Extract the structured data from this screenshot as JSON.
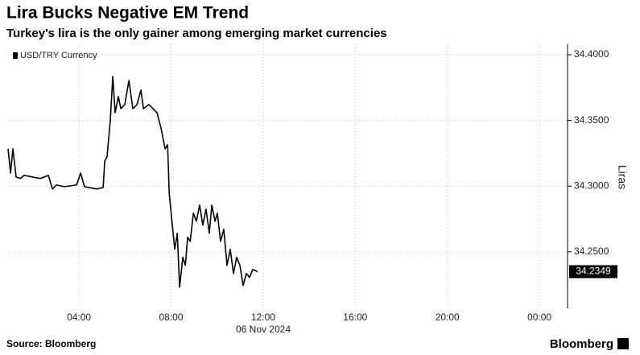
{
  "title": "Lira Bucks Negative EM Trend",
  "subtitle": "Turkey's lira is the only gainer among emerging market currencies",
  "source": "Source: Bloomberg",
  "brand": "Bloomberg",
  "chart_data": {
    "type": "line",
    "x": [
      0.92,
      1.03,
      1.13,
      1.27,
      1.45,
      1.62,
      1.97,
      2.32,
      2.67,
      2.85,
      3.02,
      3.37,
      3.9,
      4.07,
      4.24,
      4.77,
      5.05,
      5.12,
      5.22,
      5.36,
      5.47,
      5.57,
      5.71,
      5.82,
      5.99,
      6.17,
      6.34,
      6.52,
      6.69,
      6.8,
      7.04,
      7.39,
      7.57,
      7.74,
      7.85,
      7.92,
      8.02,
      8.16,
      8.27,
      8.37,
      8.51,
      8.62,
      8.72,
      8.83,
      8.97,
      9.1,
      9.24,
      9.38,
      9.52,
      9.66,
      9.77,
      9.91,
      10.01,
      10.15,
      10.29,
      10.43,
      10.57,
      10.71,
      10.85,
      10.99,
      11.13,
      11.27,
      11.41,
      11.55,
      11.76
    ],
    "series": [
      {
        "name": "USD/TRY Currency",
        "color": "#000000",
        "values": [
          34.3284,
          34.31,
          34.3284,
          34.307,
          34.3058,
          34.3082,
          34.307,
          34.3058,
          34.3082,
          34.2978,
          34.3009,
          34.2996,
          34.3009,
          34.31,
          34.2996,
          34.2978,
          34.299,
          34.3192,
          34.3223,
          34.3498,
          34.3835,
          34.3559,
          34.3682,
          34.359,
          34.3621,
          34.3804,
          34.359,
          34.3621,
          34.3731,
          34.359,
          34.3621,
          34.3559,
          34.3437,
          34.3284,
          34.3315,
          34.2947,
          34.2764,
          34.2519,
          34.2641,
          34.2231,
          34.2458,
          34.2397,
          34.2611,
          34.258,
          34.2794,
          34.2733,
          34.2856,
          34.2703,
          34.2825,
          34.2641,
          34.2856,
          34.2733,
          34.2794,
          34.258,
          34.2672,
          34.2397,
          34.2519,
          34.2335,
          34.2458,
          34.2397,
          34.2244,
          34.2335,
          34.2305,
          34.2366,
          34.2349
        ]
      }
    ],
    "xlim": [
      0.92,
      25.22
    ],
    "xticks": [
      {
        "value": 4,
        "label": "04:00"
      },
      {
        "value": 8,
        "label": "08:00"
      },
      {
        "value": 12,
        "label": "12:00"
      },
      {
        "value": 16,
        "label": "16:00"
      },
      {
        "value": 20,
        "label": "20:00"
      },
      {
        "value": 24,
        "label": "00:00"
      }
    ],
    "date_label": "06 Nov 2024",
    "ylim": [
      34.207,
      34.408
    ],
    "yticks": [
      {
        "value": 34.25,
        "label": "34.2500"
      },
      {
        "value": 34.3,
        "label": "34.3000"
      },
      {
        "value": 34.35,
        "label": "34.3500"
      },
      {
        "value": 34.4,
        "label": "34.4000"
      }
    ],
    "ylabel": "Liras",
    "grid": true,
    "legend": "top-left"
  }
}
